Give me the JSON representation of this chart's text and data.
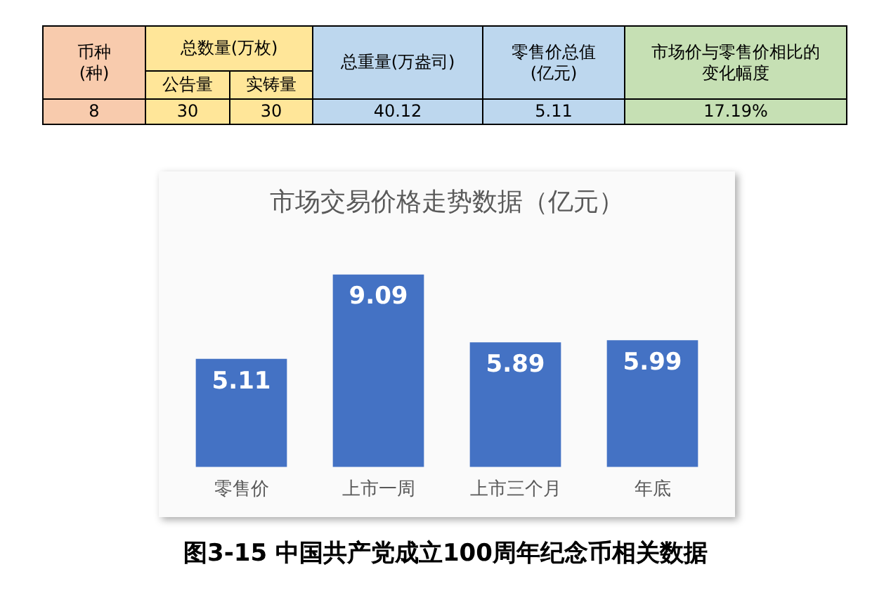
{
  "chart_data": [
    {
      "type": "other",
      "annotations": [
        "币种(种)",
        "总数量(万枚)",
        "总重量(万盎司)",
        "零售价总值(亿元)",
        "市场价与零售价相比的变化幅度",
        "公告量",
        "实铸量",
        "8",
        "30",
        "30",
        "40.12",
        "5.11",
        "17.19%"
      ]
    },
    {
      "type": "bar",
      "title": "市场交易价格走势数据（亿元）",
      "categories": [
        "零售价",
        "上市一周",
        "上市三个月",
        "年底"
      ],
      "values": [
        5.11,
        9.09,
        5.89,
        5.99
      ],
      "color": "#4472c4",
      "data_labels": true,
      "grid": false,
      "legend": false,
      "annotations": [
        "图3-15  中国共产党成立100周年纪念币相关数据"
      ]
    }
  ]
}
